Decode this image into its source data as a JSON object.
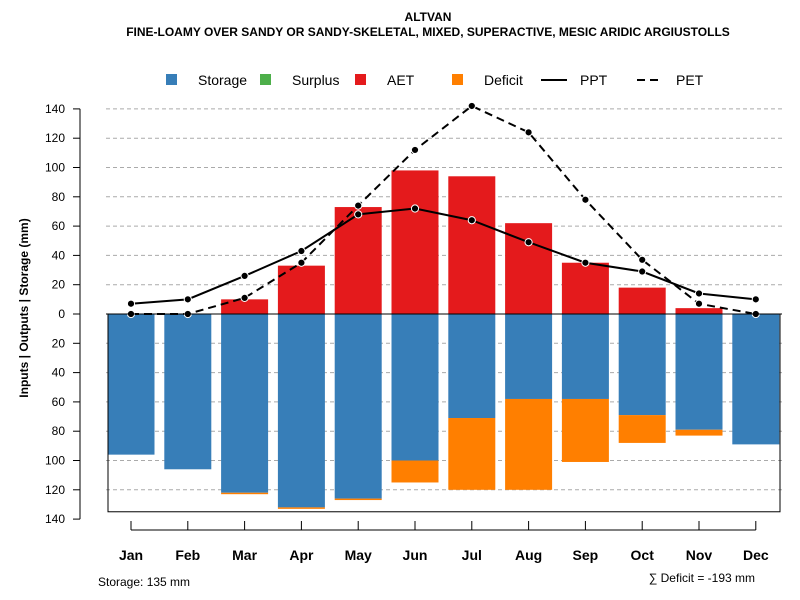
{
  "chart_data": {
    "type": "bar",
    "title": "ALTVAN",
    "subtitle": "FINE-LOAMY OVER SANDY OR SANDY-SKELETAL, MIXED, SUPERACTIVE, MESIC ARIDIC ARGIUSTOLLS",
    "ylabel": "Inputs | Outputs | Storage    (mm)",
    "ylim": [
      -140,
      140
    ],
    "yticks": [
      140,
      120,
      100,
      80,
      60,
      40,
      20,
      0,
      -20,
      -40,
      -60,
      -80,
      -100,
      -120,
      -140
    ],
    "ytick_labels": [
      "140",
      "120",
      "100",
      "80",
      "60",
      "40",
      "20",
      "0",
      "20",
      "40",
      "60",
      "80",
      "100",
      "120",
      "140"
    ],
    "categories": [
      "Jan",
      "Feb",
      "Mar",
      "Apr",
      "May",
      "Jun",
      "Jul",
      "Aug",
      "Sep",
      "Oct",
      "Nov",
      "Dec"
    ],
    "legend": [
      {
        "name": "Storage",
        "kind": "box",
        "color": "#377EB8"
      },
      {
        "name": "Surplus",
        "kind": "box",
        "color": "#4DAF4A"
      },
      {
        "name": "AET",
        "kind": "box",
        "color": "#E41A1C"
      },
      {
        "name": "Deficit",
        "kind": "box",
        "color": "#FF7F00"
      },
      {
        "name": "PPT",
        "kind": "solid",
        "color": "#000000"
      },
      {
        "name": "PET",
        "kind": "dashed",
        "color": "#000000"
      }
    ],
    "series": [
      {
        "name": "AET",
        "color": "#E41A1C",
        "values": [
          0,
          0,
          10,
          33,
          73,
          98,
          94,
          62,
          35,
          18,
          4,
          0
        ]
      },
      {
        "name": "Storage",
        "color": "#377EB8",
        "values": [
          96,
          106,
          122,
          132,
          126,
          100,
          71,
          58,
          58,
          69,
          79,
          89
        ]
      },
      {
        "name": "Deficit",
        "color": "#FF7F00",
        "values": [
          0,
          0,
          1,
          1,
          1,
          15,
          49,
          62,
          43,
          19,
          4,
          0
        ]
      },
      {
        "name": "PPT",
        "color": "#000000",
        "values": [
          7,
          10,
          26,
          43,
          68,
          72,
          64,
          49,
          35,
          29,
          14,
          10
        ]
      },
      {
        "name": "PET",
        "color": "#000000",
        "values": [
          0,
          0,
          11,
          35,
          74,
          112,
          142,
          124,
          78,
          37,
          7,
          0
        ]
      }
    ],
    "storage_capacity": 135,
    "footer_left": "Storage: 135 mm",
    "footer_right": "∑ Deficit = -193 mm"
  }
}
